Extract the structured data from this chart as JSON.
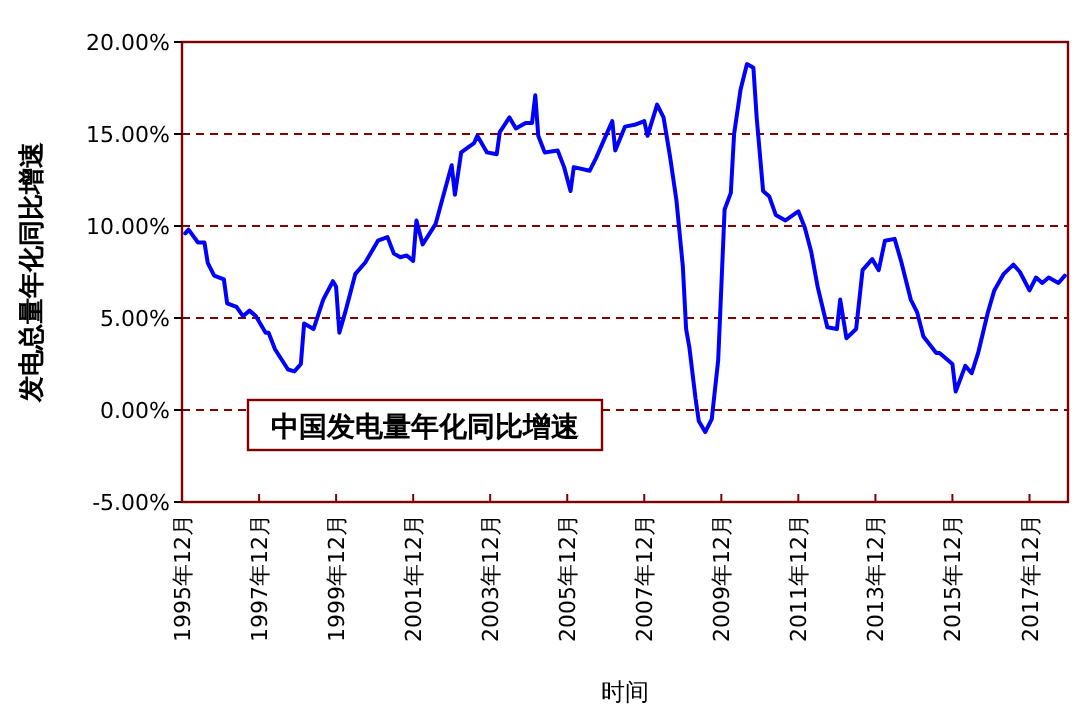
{
  "chart_data": {
    "type": "line",
    "ylabel": "发电总量年化同比增速",
    "xlabel": "时间",
    "annotations": [
      "中国发电量年化同比增速"
    ],
    "x": [
      "1996-01",
      "1996-02",
      "1996-05",
      "1996-07",
      "1996-08",
      "1996-10",
      "1997-01",
      "1997-02",
      "1997-05",
      "1997-07",
      "1997-09",
      "1997-11",
      "1998-02",
      "1998-03",
      "1998-05",
      "1998-09",
      "1998-11",
      "1999-01",
      "1999-02",
      "1999-05",
      "1999-08",
      "1999-11",
      "1999-12",
      "2000-01",
      "2000-03",
      "2000-06",
      "2000-09",
      "2001-01",
      "2001-04",
      "2001-06",
      "2001-08",
      "2001-10",
      "2001-12",
      "2002-01",
      "2002-03",
      "2002-07",
      "2002-09",
      "2002-12",
      "2003-01",
      "2003-03",
      "2003-07",
      "2003-08",
      "2003-11",
      "2004-02",
      "2004-03",
      "2004-06",
      "2004-08",
      "2004-11",
      "2005-01",
      "2005-02",
      "2005-03",
      "2005-05",
      "2005-09",
      "2005-11",
      "2006-01",
      "2006-02",
      "2006-07",
      "2006-09",
      "2006-12",
      "2007-02",
      "2007-03",
      "2007-06",
      "2007-09",
      "2007-12",
      "2008-01",
      "2008-04",
      "2008-06",
      "2008-08",
      "2008-10",
      "2008-12",
      "2009-01",
      "2009-02",
      "2009-04",
      "2009-05",
      "2009-07",
      "2009-09",
      "2009-11",
      "2009-12",
      "2010-01",
      "2010-03",
      "2010-04",
      "2010-06",
      "2010-08",
      "2010-10",
      "2010-11",
      "2011-01",
      "2011-03",
      "2011-05",
      "2011-08",
      "2011-12",
      "2012-02",
      "2012-04",
      "2012-06",
      "2012-09",
      "2012-12",
      "2013-01",
      "2013-03",
      "2013-06",
      "2013-08",
      "2013-11",
      "2014-01",
      "2014-03",
      "2014-06",
      "2014-08",
      "2014-11",
      "2015-01",
      "2015-03",
      "2015-07",
      "2015-08",
      "2015-12",
      "2016-01",
      "2016-04",
      "2016-06",
      "2016-08",
      "2016-11",
      "2017-01",
      "2017-04",
      "2017-07",
      "2017-09",
      "2017-12",
      "2018-02",
      "2018-04",
      "2018-06",
      "2018-09",
      "2018-11"
    ],
    "series": [
      {
        "color": "#0000ff",
        "values": [
          9.6,
          9.8,
          9.1,
          9.1,
          8.0,
          7.3,
          7.1,
          5.8,
          5.6,
          5.1,
          5.4,
          5.1,
          4.2,
          4.2,
          3.3,
          2.2,
          2.1,
          2.5,
          4.7,
          4.4,
          6.0,
          7.0,
          6.7,
          4.2,
          5.4,
          7.4,
          8.0,
          9.2,
          9.4,
          8.5,
          8.3,
          8.4,
          8.1,
          10.3,
          9.0,
          10.1,
          11.4,
          13.3,
          11.7,
          14.0,
          14.5,
          14.9,
          14.0,
          13.9,
          15.1,
          15.9,
          15.3,
          15.6,
          15.6,
          17.1,
          14.9,
          14.0,
          14.1,
          13.2,
          11.9,
          13.2,
          13.0,
          13.7,
          14.9,
          15.7,
          14.1,
          15.4,
          15.5,
          15.7,
          14.9,
          16.6,
          15.9,
          13.8,
          11.4,
          7.8,
          4.4,
          3.4,
          0.6,
          -0.6,
          -1.2,
          -0.5,
          2.7,
          6.7,
          10.9,
          11.8,
          15.0,
          17.4,
          18.8,
          18.6,
          15.9,
          11.9,
          11.6,
          10.6,
          10.3,
          10.8,
          9.9,
          8.6,
          6.7,
          4.5,
          4.4,
          6.0,
          3.9,
          4.4,
          7.6,
          8.2,
          7.6,
          9.2,
          9.3,
          8.1,
          6.0,
          5.3,
          4.0,
          3.1,
          3.1,
          2.5,
          1.0,
          2.4,
          2.0,
          3.1,
          5.3,
          6.5,
          7.4,
          7.9,
          7.5,
          6.5,
          7.2,
          6.9,
          7.2,
          6.9,
          7.3
        ]
      }
    ],
    "xlim": [
      "1995-12",
      "2018-12"
    ],
    "xticks": [
      {
        "value": "1995-12",
        "label": "1995年12月"
      },
      {
        "value": "1997-12",
        "label": "1997年12月"
      },
      {
        "value": "1999-12",
        "label": "1999年12月"
      },
      {
        "value": "2001-12",
        "label": "2001年12月"
      },
      {
        "value": "2003-12",
        "label": "2003年12月"
      },
      {
        "value": "2005-12",
        "label": "2005年12月"
      },
      {
        "value": "2007-12",
        "label": "2007年12月"
      },
      {
        "value": "2009-12",
        "label": "2009年12月"
      },
      {
        "value": "2011-12",
        "label": "2011年12月"
      },
      {
        "value": "2013-12",
        "label": "2013年12月"
      },
      {
        "value": "2015-12",
        "label": "2015年12月"
      },
      {
        "value": "2017-12",
        "label": "2017年12月"
      }
    ],
    "ylim": [
      -5,
      20
    ],
    "yticks": [
      {
        "value": -5,
        "label": "-5.00%"
      },
      {
        "value": 0,
        "label": "0.00%"
      },
      {
        "value": 5,
        "label": "5.00%"
      },
      {
        "value": 10,
        "label": "10.00%"
      },
      {
        "value": 15,
        "label": "15.00%"
      },
      {
        "value": 20,
        "label": "20.00%"
      }
    ],
    "grid": "y",
    "line_style": "solid",
    "marker": "none"
  }
}
